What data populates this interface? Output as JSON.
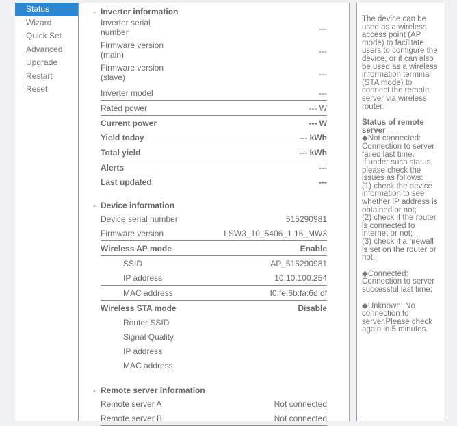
{
  "sidebar": {
    "items": [
      {
        "label": "Status",
        "active": true
      },
      {
        "label": "Wizard"
      },
      {
        "label": "Quick Set"
      },
      {
        "label": "Advanced"
      },
      {
        "label": "Upgrade"
      },
      {
        "label": "Restart"
      },
      {
        "label": "Reset"
      }
    ]
  },
  "inverter": {
    "title": "Inverter information",
    "rows": [
      {
        "label": "Inverter serial number",
        "value": "---"
      },
      {
        "label": "Firmware version (main)",
        "value": "---"
      },
      {
        "label": "Firmware version (slave)",
        "value": "---"
      },
      {
        "label": "Inverter model",
        "value": "---"
      },
      {
        "label": "Rated power",
        "value": "--- W"
      },
      {
        "label": "Current power",
        "value": "--- W"
      },
      {
        "label": "Yield today",
        "value": "--- kWh"
      },
      {
        "label": "Total yield",
        "value": "--- kWh"
      },
      {
        "label": "Alerts",
        "value": "---"
      },
      {
        "label": "Last updated",
        "value": "---"
      }
    ]
  },
  "device": {
    "title": "Device information",
    "rows": [
      {
        "label": "Device serial number",
        "value": "515290981"
      },
      {
        "label": "Firmware version",
        "value": "LSW3_10_5406_1.16_MW3"
      },
      {
        "label": "Wireless AP mode",
        "value": "Enable"
      },
      {
        "label": "SSID",
        "value": "AP_515290981"
      },
      {
        "label": "IP address",
        "value": "10.10.100.254"
      },
      {
        "label": "MAC address",
        "value": "f0:fe:6b:fa:6d:df"
      },
      {
        "label": "Wireless STA mode",
        "value": "Disable"
      },
      {
        "label": "Router SSID",
        "value": ""
      },
      {
        "label": "Signal Quality",
        "value": ""
      },
      {
        "label": "IP address",
        "value": ""
      },
      {
        "label": "MAC address",
        "value": ""
      }
    ]
  },
  "remote": {
    "title": "Remote server information",
    "rows": [
      {
        "label": "Remote server A",
        "value": "Not connected"
      },
      {
        "label": "Remote server B",
        "value": "Not connected"
      }
    ]
  },
  "help": {
    "intro": "The device can be used as a wireless access point (AP mode) to facilitate users to configure the device, or it can also be used as a wireless information terminal (STA mode) to connect the remote server via wireless router.",
    "status_title": "Status of remote server",
    "not_connected": "◆Not connected: Connection to server failed last time.",
    "if_under": "If under such status, please check the issues as follows:",
    "check1": "(1) check the device information to see whether IP address is obtained or not;",
    "check2": "(2) check if the router is connected to internet or not;",
    "check3": "(3) check if a firewall is set on the router or not;",
    "connected": "◆Connected: Connection to server successful last time;",
    "unknown": "◆Unknown: No connection to server.Please check again in 5 minutes."
  }
}
